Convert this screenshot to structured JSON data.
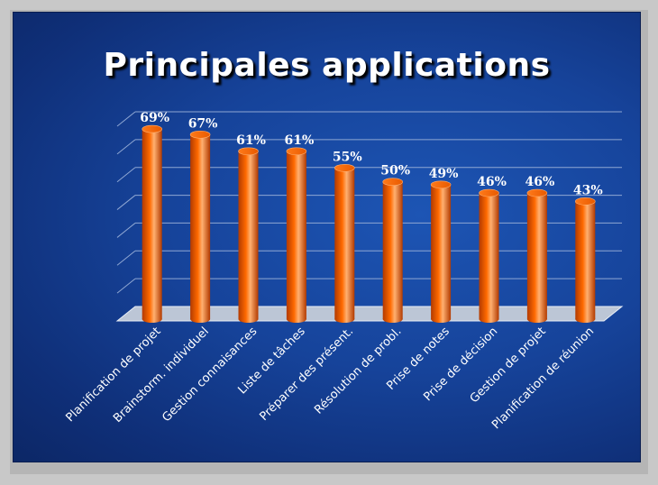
{
  "slide": {
    "title": "Principales applications"
  },
  "colors": {
    "bar": "#ff6a00",
    "bar_dark": "#b23a00",
    "bar_light": "#ffb070",
    "floor": "#bcc6d6",
    "grid": "#8fa7d3"
  },
  "chart_data": {
    "type": "bar",
    "title": "Principales applications",
    "xlabel": "",
    "ylabel": "",
    "ylim": [
      0,
      70
    ],
    "grid": true,
    "categories": [
      "Planification de projet",
      "Brainstorm. individuel",
      "Gestion connaisances",
      "Liste de tâches",
      "Préparer des présent.",
      "Résolution de probl.",
      "Prise de notes",
      "Prise de décision",
      "Gestion de projet",
      "Planification de réunion"
    ],
    "values": [
      69,
      67,
      61,
      61,
      55,
      50,
      49,
      46,
      46,
      43
    ],
    "data_labels": [
      "69%",
      "67%",
      "61%",
      "61%",
      "55%",
      "50%",
      "49%",
      "46%",
      "46%",
      "43%"
    ]
  }
}
